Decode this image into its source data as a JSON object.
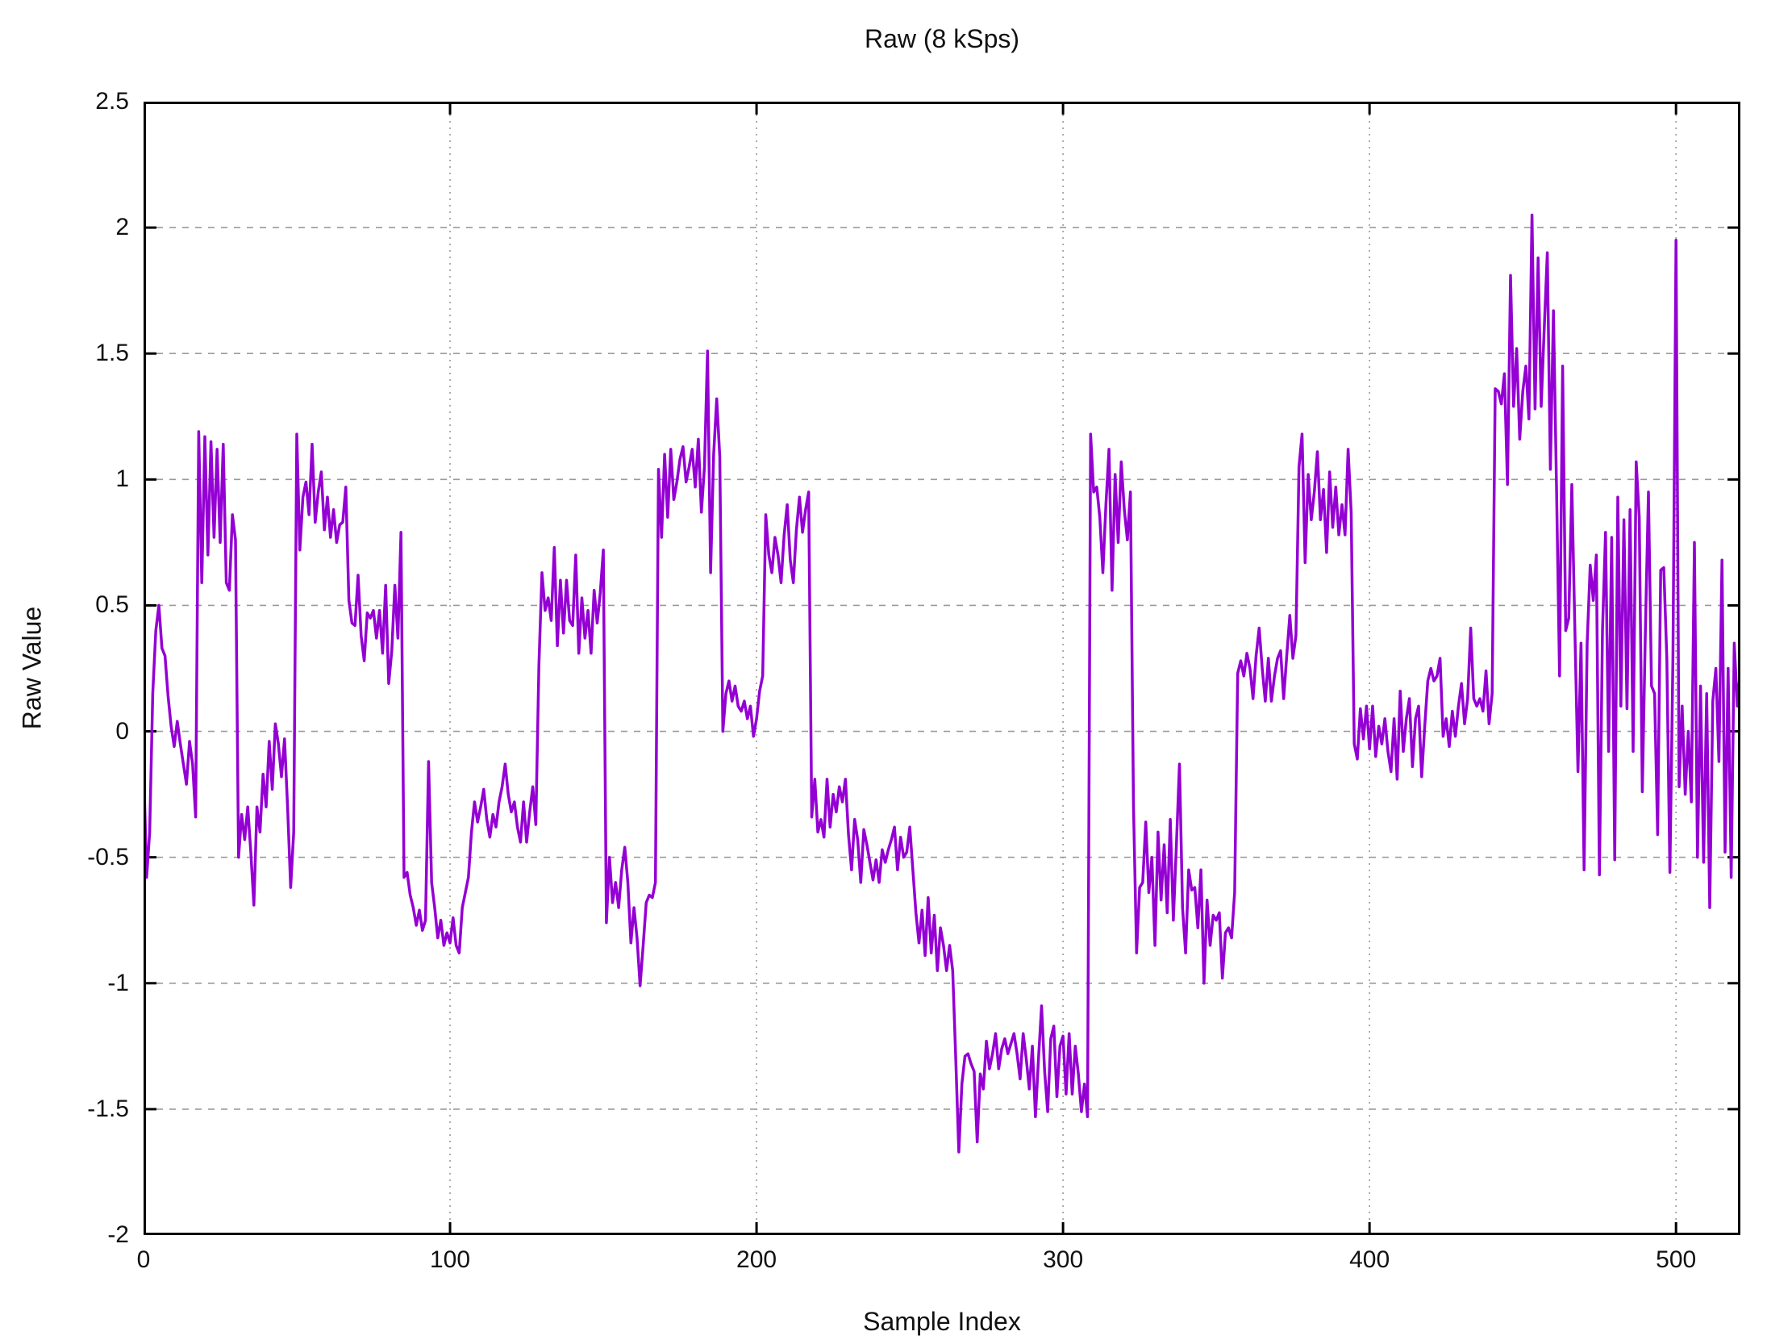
{
  "title": "Raw (8 kSps)",
  "chart_data": {
    "type": "line",
    "title": "Raw (8 kSps)",
    "xlabel": "Sample Index",
    "ylabel": "Raw Value",
    "xlim": [
      0,
      521
    ],
    "ylim": [
      -2,
      2.5
    ],
    "grid": true,
    "legend": "none",
    "line_color": "#9400D3",
    "grid_color": "#9a9a9a",
    "axis_color": "#000000",
    "x_ticks": [
      0,
      100,
      200,
      300,
      400,
      500
    ],
    "x_tick_labels": [
      "0",
      "100",
      "200",
      "300",
      "400",
      "500"
    ],
    "y_ticks": [
      -2,
      -1.5,
      -1,
      -0.5,
      0,
      0.5,
      1,
      1.5,
      2,
      2.5
    ],
    "y_tick_labels": [
      "-2",
      "-1.5",
      "-1",
      "-0.5",
      "0",
      "0.5",
      "1",
      "1.5",
      "2",
      "2.5"
    ],
    "x_start": 0,
    "x_step": 1,
    "values": [
      -0.12,
      -0.58,
      -0.4,
      0.15,
      0.4,
      0.5,
      0.33,
      0.3,
      0.14,
      0.02,
      -0.06,
      0.04,
      -0.05,
      -0.13,
      -0.21,
      -0.04,
      -0.13,
      -0.34,
      1.19,
      0.59,
      1.17,
      0.7,
      1.15,
      0.77,
      1.12,
      0.75,
      1.14,
      0.59,
      0.56,
      0.86,
      0.76,
      -0.5,
      -0.33,
      -0.43,
      -0.3,
      -0.48,
      -0.69,
      -0.3,
      -0.4,
      -0.17,
      -0.3,
      -0.04,
      -0.23,
      0.03,
      -0.05,
      -0.18,
      -0.03,
      -0.3,
      -0.62,
      -0.4,
      1.18,
      0.72,
      0.93,
      0.99,
      0.86,
      1.14,
      0.83,
      0.95,
      1.03,
      0.8,
      0.93,
      0.77,
      0.88,
      0.75,
      0.82,
      0.83,
      0.97,
      0.52,
      0.43,
      0.42,
      0.62,
      0.38,
      0.28,
      0.47,
      0.45,
      0.48,
      0.37,
      0.48,
      0.31,
      0.58,
      0.19,
      0.32,
      0.58,
      0.37,
      0.79,
      -0.58,
      -0.56,
      -0.65,
      -0.7,
      -0.77,
      -0.71,
      -0.79,
      -0.75,
      -0.12,
      -0.6,
      -0.7,
      -0.82,
      -0.75,
      -0.85,
      -0.8,
      -0.84,
      -0.74,
      -0.85,
      -0.88,
      -0.7,
      -0.64,
      -0.58,
      -0.4,
      -0.28,
      -0.36,
      -0.3,
      -0.23,
      -0.35,
      -0.42,
      -0.33,
      -0.38,
      -0.28,
      -0.22,
      -0.13,
      -0.25,
      -0.32,
      -0.28,
      -0.38,
      -0.44,
      -0.28,
      -0.44,
      -0.32,
      -0.22,
      -0.37,
      0.26,
      0.63,
      0.48,
      0.53,
      0.44,
      0.73,
      0.34,
      0.6,
      0.39,
      0.6,
      0.44,
      0.42,
      0.7,
      0.31,
      0.53,
      0.37,
      0.48,
      0.31,
      0.56,
      0.43,
      0.55,
      0.72,
      -0.76,
      -0.5,
      -0.68,
      -0.6,
      -0.7,
      -0.55,
      -0.46,
      -0.6,
      -0.84,
      -0.7,
      -0.82,
      -1.01,
      -0.85,
      -0.68,
      -0.65,
      -0.66,
      -0.6,
      1.04,
      0.77,
      1.1,
      0.85,
      1.12,
      0.92,
      0.99,
      1.08,
      1.13,
      0.99,
      1.05,
      1.12,
      0.97,
      1.16,
      0.87,
      1.05,
      1.51,
      0.63,
      1.1,
      1.32,
      1.09,
      0.0,
      0.15,
      0.2,
      0.12,
      0.18,
      0.1,
      0.08,
      0.12,
      0.05,
      0.1,
      -0.02,
      0.05,
      0.16,
      0.22,
      0.86,
      0.7,
      0.63,
      0.77,
      0.7,
      0.59,
      0.78,
      0.9,
      0.68,
      0.59,
      0.8,
      0.93,
      0.79,
      0.88,
      0.95,
      -0.34,
      -0.19,
      -0.4,
      -0.35,
      -0.42,
      -0.19,
      -0.38,
      -0.25,
      -0.32,
      -0.22,
      -0.28,
      -0.19,
      -0.41,
      -0.55,
      -0.35,
      -0.43,
      -0.6,
      -0.39,
      -0.45,
      -0.52,
      -0.59,
      -0.51,
      -0.6,
      -0.47,
      -0.52,
      -0.47,
      -0.43,
      -0.38,
      -0.55,
      -0.42,
      -0.5,
      -0.48,
      -0.38,
      -0.55,
      -0.72,
      -0.84,
      -0.71,
      -0.89,
      -0.66,
      -0.88,
      -0.73,
      -0.95,
      -0.78,
      -0.85,
      -0.95,
      -0.85,
      -0.95,
      -1.3,
      -1.67,
      -1.4,
      -1.29,
      -1.28,
      -1.32,
      -1.35,
      -1.63,
      -1.36,
      -1.42,
      -1.23,
      -1.34,
      -1.28,
      -1.2,
      -1.34,
      -1.26,
      -1.22,
      -1.28,
      -1.24,
      -1.2,
      -1.28,
      -1.38,
      -1.2,
      -1.3,
      -1.42,
      -1.25,
      -1.53,
      -1.3,
      -1.09,
      -1.35,
      -1.51,
      -1.22,
      -1.17,
      -1.45,
      -1.25,
      -1.21,
      -1.44,
      -1.2,
      -1.44,
      -1.25,
      -1.36,
      -1.51,
      -1.4,
      -1.53,
      1.18,
      0.95,
      0.97,
      0.85,
      0.63,
      0.9,
      1.12,
      0.56,
      1.02,
      0.75,
      1.07,
      0.88,
      0.76,
      0.95,
      -0.3,
      -0.88,
      -0.62,
      -0.6,
      -0.36,
      -0.64,
      -0.5,
      -0.85,
      -0.4,
      -0.67,
      -0.45,
      -0.72,
      -0.35,
      -0.75,
      -0.45,
      -0.13,
      -0.7,
      -0.88,
      -0.55,
      -0.63,
      -0.62,
      -0.78,
      -0.55,
      -1.0,
      -0.67,
      -0.85,
      -0.73,
      -0.75,
      -0.72,
      -0.98,
      -0.8,
      -0.78,
      -0.82,
      -0.64,
      0.23,
      0.28,
      0.22,
      0.31,
      0.25,
      0.13,
      0.3,
      0.41,
      0.25,
      0.12,
      0.29,
      0.12,
      0.22,
      0.29,
      0.32,
      0.13,
      0.3,
      0.46,
      0.29,
      0.38,
      1.05,
      1.18,
      0.67,
      1.02,
      0.84,
      0.95,
      1.11,
      0.84,
      0.96,
      0.71,
      1.03,
      0.81,
      0.97,
      0.78,
      0.9,
      0.78,
      1.12,
      0.87,
      -0.05,
      -0.11,
      0.09,
      -0.03,
      0.1,
      -0.07,
      0.1,
      -0.1,
      0.02,
      -0.05,
      0.05,
      -0.08,
      -0.16,
      0.05,
      -0.19,
      0.16,
      -0.08,
      0.05,
      0.13,
      -0.14,
      0.05,
      0.1,
      -0.18,
      0.02,
      0.2,
      0.25,
      0.2,
      0.22,
      0.29,
      -0.02,
      0.05,
      -0.06,
      0.08,
      -0.02,
      0.1,
      0.19,
      0.03,
      0.13,
      0.41,
      0.13,
      0.1,
      0.13,
      0.08,
      0.24,
      0.03,
      0.15,
      1.36,
      1.35,
      1.3,
      1.42,
      0.98,
      1.81,
      1.29,
      1.52,
      1.16,
      1.35,
      1.45,
      1.24,
      2.05,
      1.28,
      1.88,
      1.29,
      1.6,
      1.9,
      1.04,
      1.67,
      0.97,
      0.22,
      1.45,
      0.4,
      0.45,
      0.98,
      0.4,
      -0.16,
      0.35,
      -0.55,
      0.35,
      0.66,
      0.52,
      0.7,
      -0.57,
      0.4,
      0.79,
      -0.08,
      0.77,
      -0.51,
      0.93,
      0.1,
      0.84,
      0.09,
      0.88,
      -0.08,
      1.07,
      0.85,
      -0.24,
      0.4,
      0.95,
      0.18,
      0.15,
      -0.41,
      0.64,
      0.65,
      0.29,
      -0.56,
      0.3,
      1.95,
      -0.22,
      0.1,
      -0.25,
      0.0,
      -0.28,
      0.75,
      -0.5,
      0.18,
      -0.52,
      0.15,
      -0.7,
      0.12,
      0.25,
      -0.12,
      0.68,
      -0.48,
      0.25,
      -0.58,
      0.35,
      0.1,
      0.25
    ]
  }
}
